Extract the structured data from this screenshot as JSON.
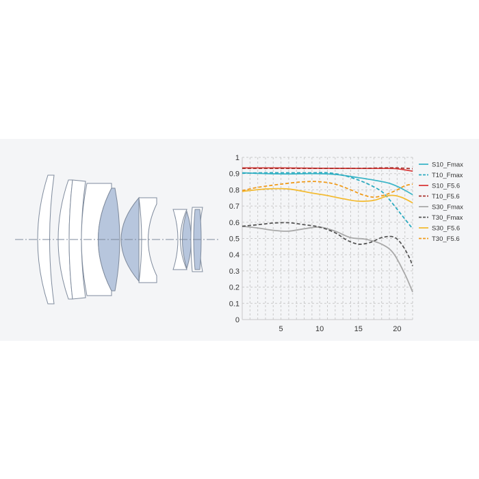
{
  "colors": {
    "panel_bg": "#f4f5f7",
    "lens_fill": "#ffffff",
    "lens_aspheric_fill": "#b7c6dd",
    "lens_stroke": "#7e8a9c",
    "grid": "#c9c9c9",
    "axis": "#c8c8c8"
  },
  "chart_data": {
    "type": "line",
    "title": "",
    "xlabel": "",
    "ylabel": "",
    "xlim": [
      0,
      22
    ],
    "ylim": [
      0,
      1
    ],
    "xticks": [
      5,
      10,
      15,
      20
    ],
    "yticks": [
      0,
      0.1,
      0.2,
      0.3,
      0.4,
      0.5,
      0.6,
      0.7,
      0.8,
      0.9,
      1
    ],
    "ytick_labels": [
      "0",
      "0.1",
      "0.2",
      "0.3",
      "0.4",
      "0.5",
      "0.6",
      "0.7",
      "0.8",
      "0.9",
      "1"
    ],
    "grid": true,
    "legend_position": "right",
    "series": [
      {
        "name": "S10_Fmax",
        "color": "#3db6c8",
        "dashed": false,
        "points": [
          [
            0,
            0.905
          ],
          [
            3,
            0.9
          ],
          [
            6,
            0.898
          ],
          [
            9,
            0.9
          ],
          [
            12,
            0.895
          ],
          [
            15,
            0.875
          ],
          [
            17,
            0.86
          ],
          [
            19,
            0.84
          ],
          [
            20.5,
            0.81
          ],
          [
            22,
            0.77
          ]
        ]
      },
      {
        "name": "T10_Fmax",
        "color": "#2aaabf",
        "dashed": true,
        "points": [
          [
            0,
            0.902
          ],
          [
            3,
            0.905
          ],
          [
            6,
            0.905
          ],
          [
            9,
            0.905
          ],
          [
            11,
            0.905
          ],
          [
            13,
            0.89
          ],
          [
            15,
            0.86
          ],
          [
            16.5,
            0.83
          ],
          [
            18,
            0.79
          ],
          [
            19,
            0.74
          ],
          [
            20,
            0.68
          ],
          [
            21,
            0.62
          ],
          [
            22,
            0.56
          ]
        ]
      },
      {
        "name": "S10_F5.6",
        "color": "#d93a3a",
        "dashed": false,
        "points": [
          [
            0,
            0.935
          ],
          [
            5,
            0.935
          ],
          [
            10,
            0.933
          ],
          [
            15,
            0.932
          ],
          [
            18,
            0.932
          ],
          [
            20,
            0.93
          ],
          [
            22,
            0.915
          ]
        ]
      },
      {
        "name": "T10_F5.6",
        "color": "#a8302b",
        "dashed": true,
        "points": [
          [
            0,
            0.932
          ],
          [
            5,
            0.932
          ],
          [
            10,
            0.932
          ],
          [
            15,
            0.932
          ],
          [
            18,
            0.935
          ],
          [
            20,
            0.935
          ],
          [
            22,
            0.93
          ]
        ]
      },
      {
        "name": "S30_Fmax",
        "color": "#a8a8a8",
        "dashed": false,
        "points": [
          [
            0,
            0.575
          ],
          [
            2,
            0.565
          ],
          [
            4,
            0.55
          ],
          [
            6,
            0.545
          ],
          [
            8,
            0.56
          ],
          [
            10,
            0.57
          ],
          [
            12,
            0.545
          ],
          [
            14,
            0.505
          ],
          [
            16,
            0.495
          ],
          [
            18,
            0.465
          ],
          [
            19.5,
            0.41
          ],
          [
            21,
            0.28
          ],
          [
            22,
            0.17
          ]
        ]
      },
      {
        "name": "T30_Fmax",
        "color": "#555555",
        "dashed": true,
        "points": [
          [
            0,
            0.575
          ],
          [
            2,
            0.585
          ],
          [
            4,
            0.595
          ],
          [
            6,
            0.597
          ],
          [
            8,
            0.585
          ],
          [
            10,
            0.57
          ],
          [
            12,
            0.535
          ],
          [
            13.5,
            0.49
          ],
          [
            15,
            0.465
          ],
          [
            16.5,
            0.475
          ],
          [
            18,
            0.505
          ],
          [
            19.5,
            0.51
          ],
          [
            20.5,
            0.47
          ],
          [
            21.5,
            0.39
          ],
          [
            22,
            0.33
          ]
        ]
      },
      {
        "name": "S30_F5.6",
        "color": "#f3bb32",
        "dashed": false,
        "points": [
          [
            0,
            0.79
          ],
          [
            3,
            0.805
          ],
          [
            6,
            0.805
          ],
          [
            9,
            0.78
          ],
          [
            11,
            0.765
          ],
          [
            13,
            0.745
          ],
          [
            15,
            0.73
          ],
          [
            17,
            0.735
          ],
          [
            19,
            0.765
          ],
          [
            20.5,
            0.755
          ],
          [
            22,
            0.72
          ]
        ]
      },
      {
        "name": "T30_F5.6",
        "color": "#f09a18",
        "dashed": true,
        "points": [
          [
            0,
            0.795
          ],
          [
            2,
            0.815
          ],
          [
            5,
            0.835
          ],
          [
            8,
            0.85
          ],
          [
            10,
            0.85
          ],
          [
            12,
            0.835
          ],
          [
            14,
            0.8
          ],
          [
            15.5,
            0.77
          ],
          [
            17,
            0.755
          ],
          [
            18.5,
            0.77
          ],
          [
            20,
            0.8
          ],
          [
            21,
            0.825
          ],
          [
            22,
            0.835
          ]
        ]
      }
    ]
  }
}
